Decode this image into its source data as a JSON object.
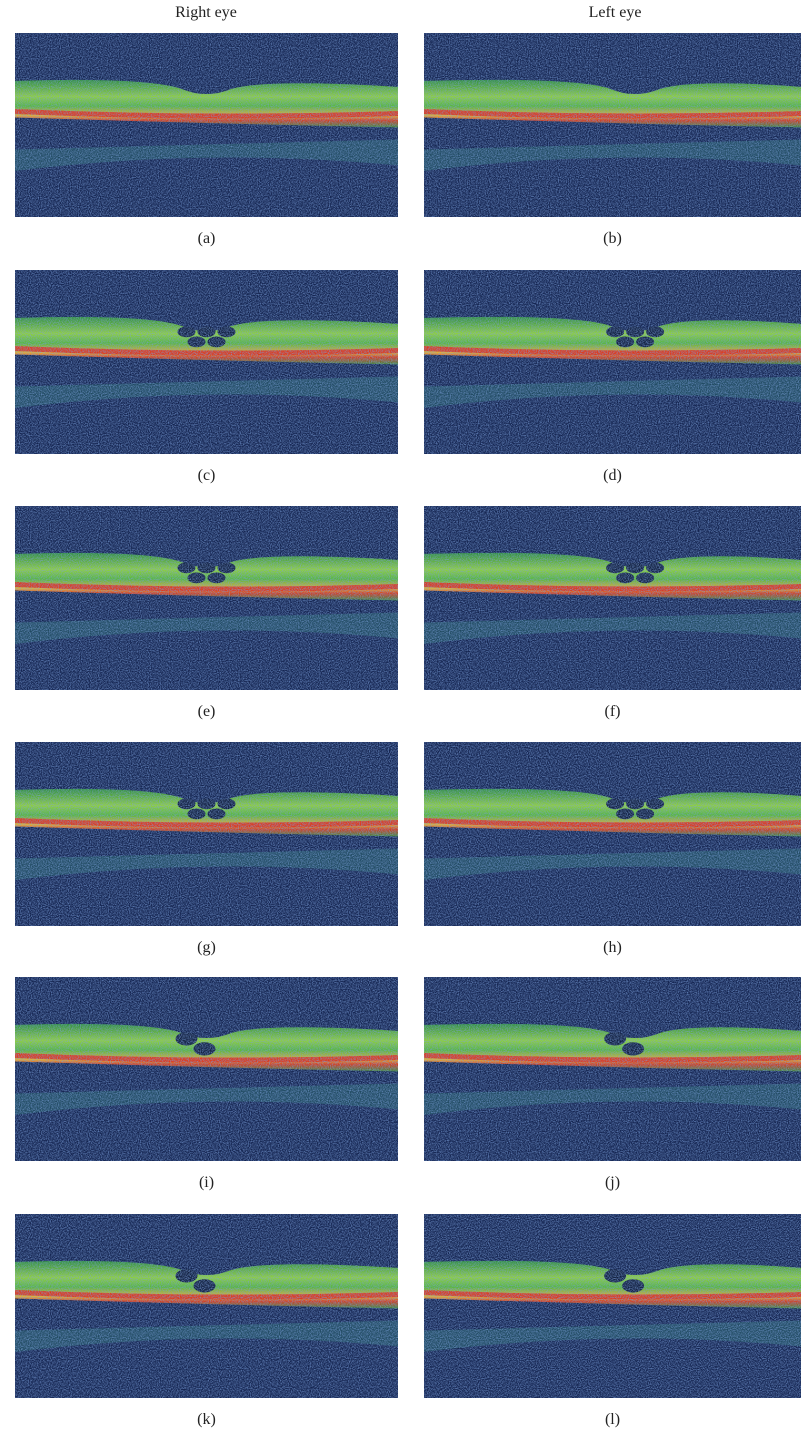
{
  "headers": [
    "Right eye",
    "Left eye"
  ],
  "panels": [
    "(a)",
    "(b)",
    "(c)",
    "(d)",
    "(e)",
    "(f)",
    "(g)",
    "(h)",
    "(i)",
    "(j)",
    "(k)",
    "(l)"
  ]
}
